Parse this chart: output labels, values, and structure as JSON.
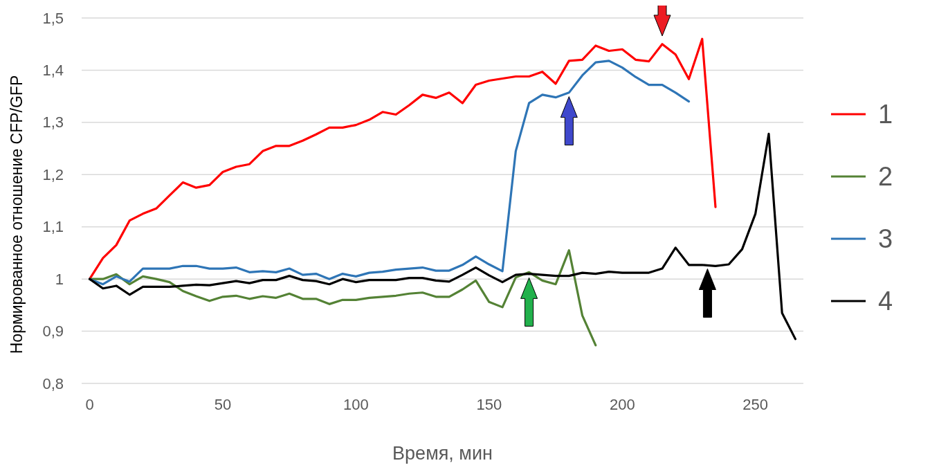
{
  "chart_data": {
    "type": "line",
    "xlabel": "Время, мин",
    "ylabel": "Нормированное отношение CFP/GFP",
    "xlim": [
      -3,
      268
    ],
    "xticks": [
      0,
      50,
      100,
      150,
      200,
      250
    ],
    "ylim": [
      0.8,
      1.5
    ],
    "yticks": [
      {
        "value": 0.8,
        "label": "0,8"
      },
      {
        "value": 0.9,
        "label": "0,9"
      },
      {
        "value": 1,
        "label": "1"
      },
      {
        "value": 1.1,
        "label": "1,1"
      },
      {
        "value": 1.2,
        "label": "1,2"
      },
      {
        "value": 1.3,
        "label": "1,3"
      },
      {
        "value": 1.4,
        "label": "1,4"
      },
      {
        "value": 1.5,
        "label": "1,5"
      }
    ],
    "grid": "y",
    "legend": "right",
    "marker": "none",
    "line_style": "solid",
    "series": [
      {
        "name": "1",
        "color": "#ff0000",
        "x": [
          0,
          5,
          10,
          15,
          20,
          25,
          30,
          35,
          40,
          45,
          50,
          55,
          60,
          65,
          70,
          75,
          80,
          85,
          90,
          95,
          100,
          105,
          110,
          115,
          120,
          125,
          130,
          135,
          140,
          145,
          150,
          155,
          160,
          165,
          170,
          175,
          180,
          185,
          190,
          195,
          200,
          205,
          210,
          215,
          220,
          225,
          230,
          235
        ],
        "values": [
          1.0,
          1.04,
          1.065,
          1.112,
          1.125,
          1.135,
          1.16,
          1.185,
          1.175,
          1.18,
          1.205,
          1.215,
          1.22,
          1.245,
          1.255,
          1.255,
          1.265,
          1.277,
          1.29,
          1.29,
          1.295,
          1.305,
          1.32,
          1.315,
          1.333,
          1.353,
          1.347,
          1.357,
          1.337,
          1.372,
          1.38,
          1.384,
          1.388,
          1.388,
          1.397,
          1.374,
          1.418,
          1.42,
          1.447,
          1.437,
          1.44,
          1.42,
          1.417,
          1.45,
          1.43,
          1.383,
          1.46,
          1.138
        ]
      },
      {
        "name": "2",
        "color": "#548235",
        "x": [
          0,
          5,
          10,
          15,
          20,
          25,
          30,
          35,
          40,
          45,
          50,
          55,
          60,
          65,
          70,
          75,
          80,
          85,
          90,
          95,
          100,
          105,
          110,
          115,
          120,
          125,
          130,
          135,
          140,
          145,
          150,
          155,
          160,
          165,
          170,
          175,
          180,
          185,
          190
        ],
        "values": [
          1.0,
          1.0,
          1.009,
          0.99,
          1.005,
          1.0,
          0.994,
          0.977,
          0.967,
          0.958,
          0.966,
          0.968,
          0.962,
          0.967,
          0.964,
          0.972,
          0.962,
          0.962,
          0.952,
          0.96,
          0.96,
          0.964,
          0.966,
          0.968,
          0.972,
          0.974,
          0.966,
          0.966,
          0.98,
          0.997,
          0.956,
          0.946,
          1.003,
          1.013,
          0.997,
          0.99,
          1.055,
          0.93,
          0.873
        ]
      },
      {
        "name": "3",
        "color": "#2e75b6",
        "x": [
          0,
          5,
          10,
          15,
          20,
          25,
          30,
          35,
          40,
          45,
          50,
          55,
          60,
          65,
          70,
          75,
          80,
          85,
          90,
          95,
          100,
          105,
          110,
          115,
          120,
          125,
          130,
          135,
          140,
          145,
          150,
          155,
          160,
          165,
          170,
          175,
          180,
          185,
          190,
          195,
          200,
          205,
          210,
          215,
          220,
          225
        ],
        "values": [
          1.0,
          0.99,
          1.005,
          0.995,
          1.02,
          1.02,
          1.02,
          1.025,
          1.025,
          1.02,
          1.02,
          1.022,
          1.013,
          1.015,
          1.013,
          1.02,
          1.008,
          1.01,
          1.0,
          1.01,
          1.005,
          1.012,
          1.014,
          1.018,
          1.02,
          1.022,
          1.016,
          1.016,
          1.027,
          1.043,
          1.028,
          1.015,
          1.245,
          1.337,
          1.353,
          1.348,
          1.357,
          1.39,
          1.415,
          1.418,
          1.405,
          1.387,
          1.372,
          1.372,
          1.357,
          1.34
        ]
      },
      {
        "name": "4",
        "color": "#000000",
        "x": [
          0,
          5,
          10,
          15,
          20,
          25,
          30,
          35,
          40,
          45,
          50,
          55,
          60,
          65,
          70,
          75,
          80,
          85,
          90,
          95,
          100,
          105,
          110,
          115,
          120,
          125,
          130,
          135,
          140,
          145,
          150,
          155,
          160,
          165,
          170,
          175,
          180,
          185,
          190,
          195,
          200,
          205,
          210,
          215,
          220,
          225,
          230,
          235,
          240,
          245,
          250,
          255,
          260,
          265
        ],
        "values": [
          1.0,
          0.982,
          0.987,
          0.97,
          0.985,
          0.985,
          0.985,
          0.987,
          0.989,
          0.988,
          0.992,
          0.996,
          0.992,
          0.998,
          0.998,
          1.006,
          0.998,
          0.996,
          0.99,
          1.0,
          0.994,
          0.998,
          0.998,
          0.998,
          1.002,
          1.002,
          0.997,
          0.995,
          1.008,
          1.022,
          1.007,
          0.994,
          1.008,
          1.01,
          1.008,
          1.006,
          1.006,
          1.012,
          1.01,
          1.014,
          1.012,
          1.012,
          1.012,
          1.02,
          1.06,
          1.027,
          1.027,
          1.025,
          1.028,
          1.057,
          1.125,
          1.278,
          0.935,
          0.885
        ]
      }
    ]
  }
}
